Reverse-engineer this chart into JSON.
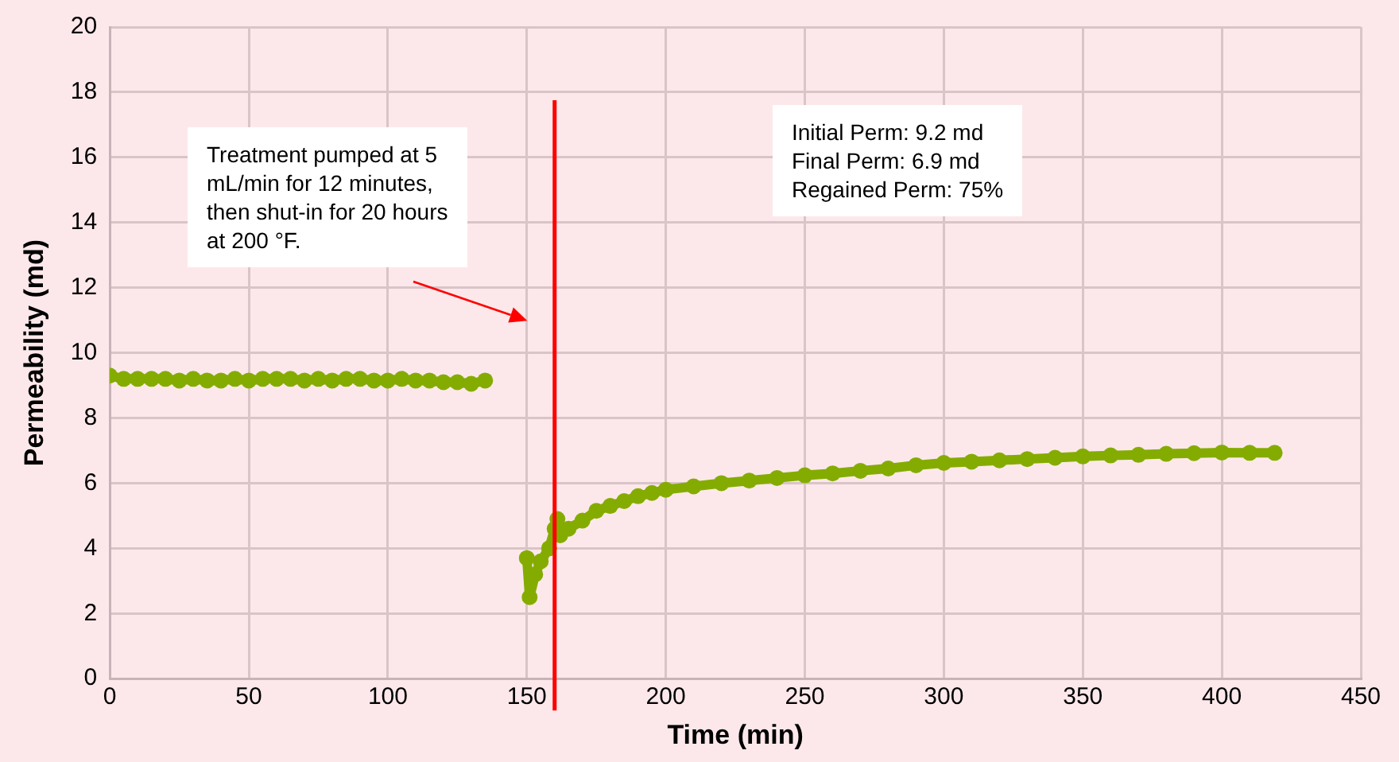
{
  "chart_data": {
    "type": "line",
    "xlabel": "Time (min)",
    "ylabel": "Permeability (md)",
    "xlim": [
      0,
      450
    ],
    "xticks": [
      0,
      50,
      100,
      150,
      200,
      250,
      300,
      350,
      400,
      450
    ],
    "ylim": [
      0,
      20
    ],
    "yticks": [
      0,
      2,
      4,
      6,
      8,
      10,
      12,
      14,
      16,
      18,
      20
    ],
    "grid": true,
    "legend": false,
    "marker": "circle",
    "line_style": "solid",
    "series": [
      {
        "color": "#84ac00",
        "x": [
          0,
          5,
          10,
          15,
          20,
          25,
          30,
          35,
          40,
          45,
          50,
          55,
          60,
          65,
          70,
          75,
          80,
          85,
          90,
          95,
          100,
          105,
          110,
          115,
          120,
          125,
          130,
          135,
          143,
          150,
          151,
          153,
          155,
          158,
          160,
          161,
          162,
          165,
          170,
          175,
          180,
          185,
          190,
          195,
          200,
          210,
          220,
          230,
          240,
          250,
          260,
          270,
          280,
          290,
          300,
          310,
          320,
          330,
          340,
          350,
          360,
          370,
          380,
          390,
          400,
          410,
          419
        ],
        "values": [
          9.3,
          9.2,
          9.2,
          9.2,
          9.2,
          9.15,
          9.2,
          9.15,
          9.15,
          9.2,
          9.15,
          9.2,
          9.2,
          9.2,
          9.15,
          9.2,
          9.15,
          9.2,
          9.2,
          9.15,
          9.15,
          9.2,
          9.15,
          9.15,
          9.1,
          9.1,
          9.05,
          9.15,
          null,
          3.7,
          2.5,
          3.2,
          3.6,
          4.0,
          4.6,
          4.9,
          4.4,
          4.6,
          4.85,
          5.15,
          5.3,
          5.45,
          5.6,
          5.7,
          5.8,
          5.9,
          6.0,
          6.08,
          6.16,
          6.24,
          6.3,
          6.38,
          6.45,
          6.55,
          6.62,
          6.66,
          6.7,
          6.74,
          6.78,
          6.82,
          6.85,
          6.87,
          6.9,
          6.92,
          6.94,
          6.93,
          6.93
        ]
      }
    ],
    "ref_lines": [
      {
        "axis": "x",
        "value": 160,
        "color": "#ff0000"
      }
    ],
    "annotations": [
      "Treatment pumped at 5\nmL/min for 12 minutes,\nthen shut-in for 20 hours\nat 200 °F.",
      "Initial Perm: 9.2 md\nFinal Perm: 6.9 md\nRegained Perm: 75%"
    ]
  }
}
